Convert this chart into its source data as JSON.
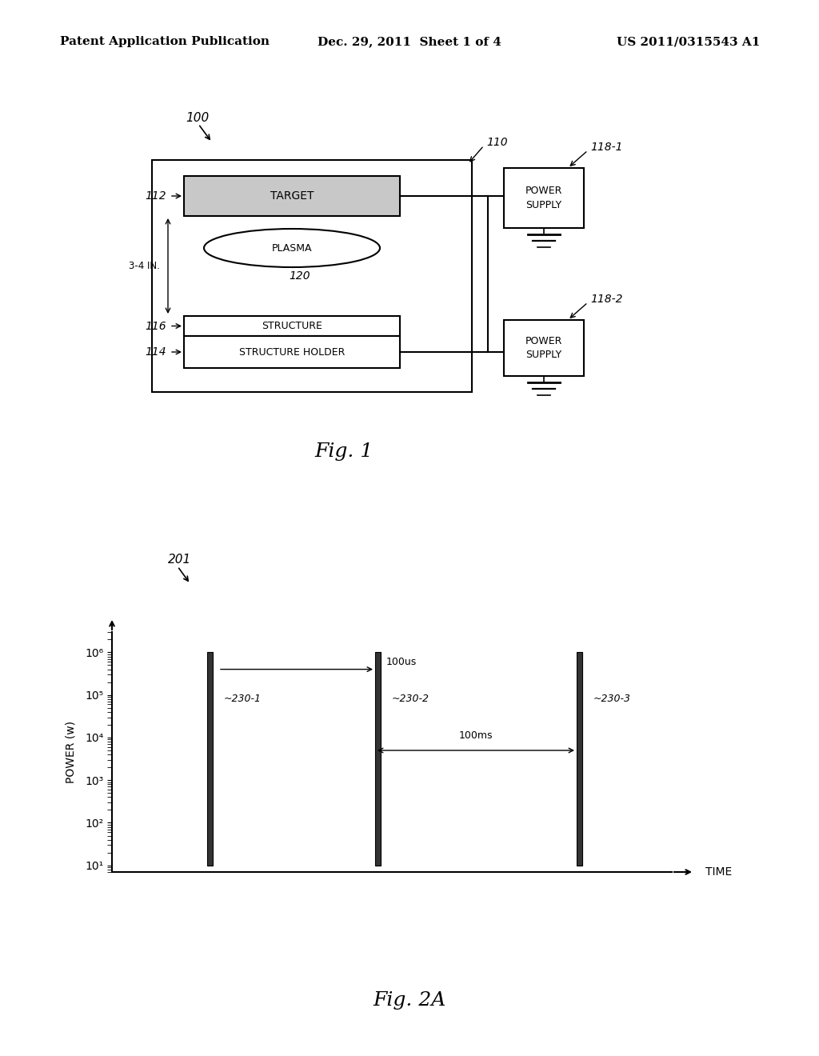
{
  "background_color": "#ffffff",
  "header_left": "Patent Application Publication",
  "header_center": "Dec. 29, 2011  Sheet 1 of 4",
  "header_right": "US 2011/0315543 A1",
  "header_fontsize": 11,
  "fig1_caption": "Fig. 1",
  "fig2_caption": "Fig. 2A",
  "ytick_labels": [
    "10¹",
    "10²",
    "10³",
    "10⁴",
    "10⁵",
    "10⁶"
  ],
  "yticks": [
    10,
    100,
    1000,
    10000,
    100000,
    1000000
  ]
}
